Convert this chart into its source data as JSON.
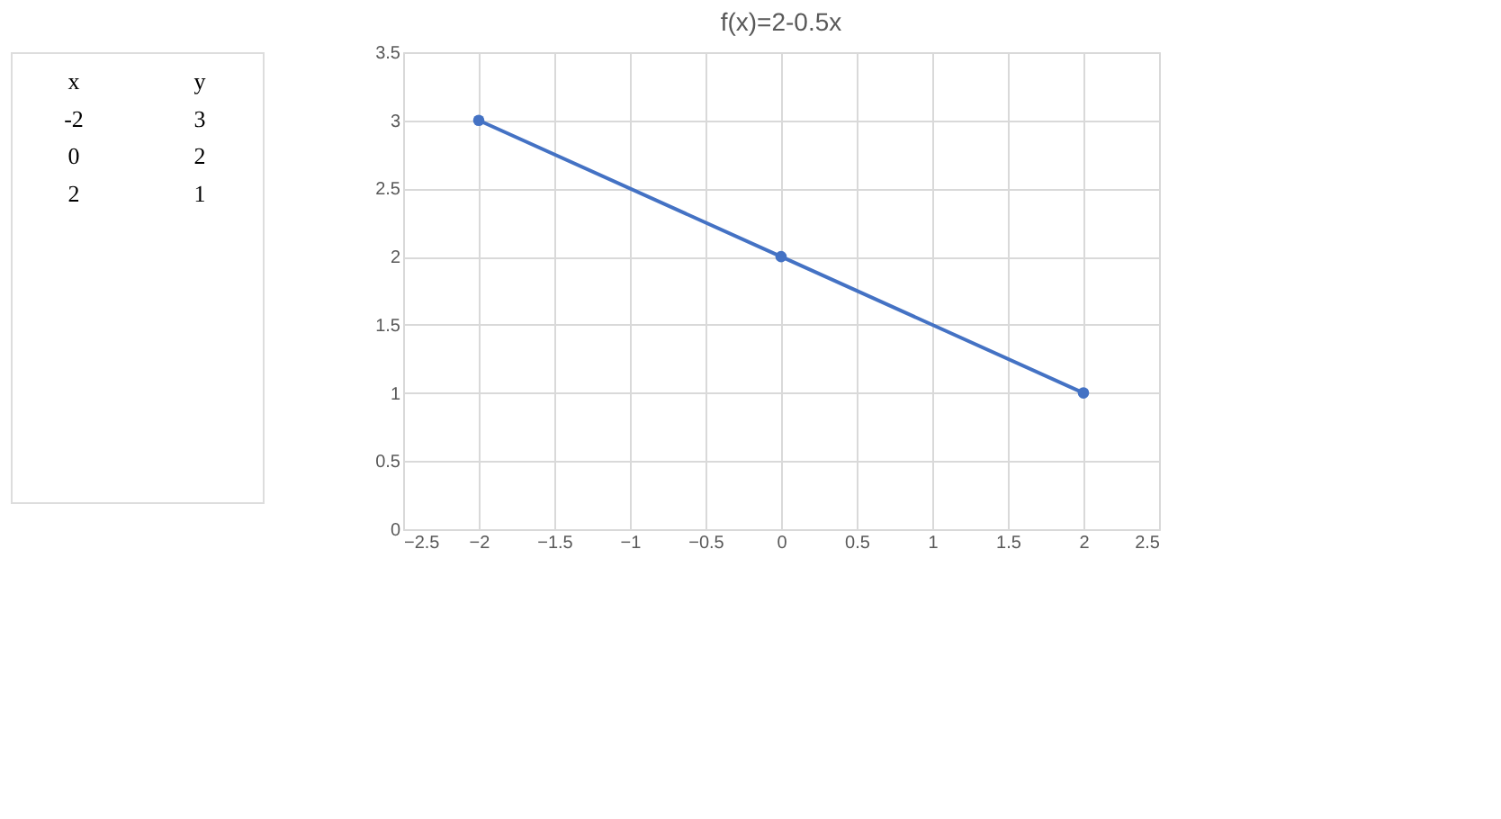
{
  "chart_data": {
    "type": "line",
    "title": "f(x)=2-0.5x",
    "annotations": [
      "x",
      "y",
      "-2",
      "3",
      "0",
      "2",
      "2",
      "1"
    ],
    "x": [
      -2,
      0,
      2
    ],
    "series": [
      {
        "color": "#4472c4",
        "values": [
          3,
          2,
          1
        ]
      }
    ],
    "xlim": [
      -2.5,
      2.5
    ],
    "xticks": [
      -2.5,
      -2,
      -1.5,
      -1,
      -0.5,
      0,
      0.5,
      1,
      1.5,
      2,
      2.5
    ],
    "ylim": [
      0,
      3.5
    ],
    "yticks": [
      0,
      0.5,
      1,
      1.5,
      2,
      2.5,
      3,
      3.5
    ],
    "grid": true,
    "marker": "circle",
    "line_style": "solid"
  }
}
